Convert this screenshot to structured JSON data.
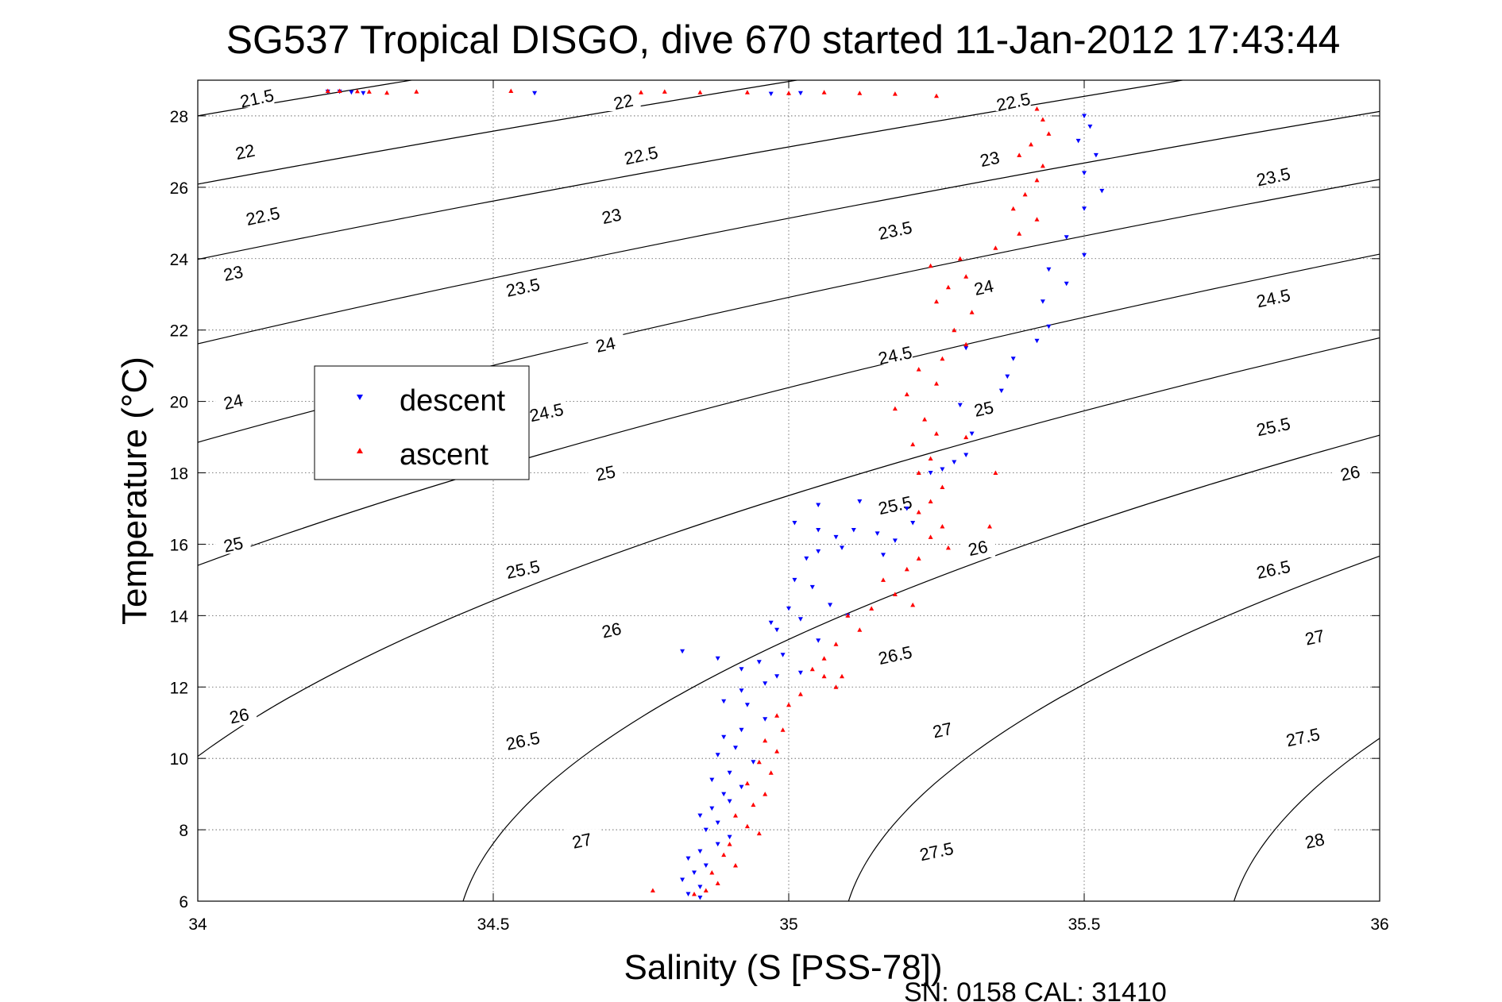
{
  "chart_data": {
    "type": "scatter",
    "title": "SG537 Tropical DISGO, dive 670 started 11-Jan-2012 17:43:44",
    "xlabel": "Salinity (S [PSS-78])",
    "ylabel": "Temperature (°C)",
    "footer": "SN: 0158  CAL: 31410",
    "xlim": [
      34,
      36
    ],
    "ylim": [
      6,
      29
    ],
    "xticks": [
      34,
      34.5,
      35,
      35.5,
      36
    ],
    "xtick_labels": [
      "34",
      "34.5",
      "35",
      "35.5",
      "36"
    ],
    "yticks": [
      6,
      8,
      10,
      12,
      14,
      16,
      18,
      20,
      22,
      24,
      26,
      28
    ],
    "ytick_labels": [
      "6",
      "8",
      "10",
      "12",
      "14",
      "16",
      "18",
      "20",
      "22",
      "24",
      "26",
      "28"
    ],
    "grid": true,
    "legend_position": "left-middle",
    "legend": [
      {
        "label": "descent",
        "color": "#0000ff",
        "marker": "triangle-down"
      },
      {
        "label": "ascent",
        "color": "#ff0000",
        "marker": "triangle-up"
      }
    ],
    "isopycnals": {
      "levels": [
        21.5,
        22,
        22.5,
        23,
        23.5,
        24,
        24.5,
        25,
        25.5,
        26,
        26.5,
        27,
        27.5,
        28
      ],
      "level_labels": [
        "21.5",
        "22",
        "22.5",
        "23",
        "23.5",
        "24",
        "24.5",
        "25",
        "25.5",
        "26",
        "26.5",
        "27",
        "27.5",
        "28"
      ],
      "line_color": "#000000",
      "label_positions": [
        {
          "level": 21.5,
          "label": "21.5",
          "x": 34.1,
          "y": 28.5
        },
        {
          "level": 22,
          "label": "22",
          "x": 34.08,
          "y": 27.0
        },
        {
          "level": 22,
          "label": "22",
          "x": 34.72,
          "y": 28.4
        },
        {
          "level": 22.5,
          "label": "22.5",
          "x": 34.11,
          "y": 25.2
        },
        {
          "level": 22.5,
          "label": "22.5",
          "x": 34.75,
          "y": 26.9
        },
        {
          "level": 22.5,
          "label": "22.5",
          "x": 35.38,
          "y": 28.4
        },
        {
          "level": 23,
          "label": "23",
          "x": 34.06,
          "y": 23.6
        },
        {
          "level": 23,
          "label": "23",
          "x": 34.7,
          "y": 25.2
        },
        {
          "level": 23,
          "label": "23",
          "x": 35.34,
          "y": 26.8
        },
        {
          "level": 23.5,
          "label": "23.5",
          "x": 34.55,
          "y": 23.2
        },
        {
          "level": 23.5,
          "label": "23.5",
          "x": 35.18,
          "y": 24.8
        },
        {
          "level": 23.5,
          "label": "23.5",
          "x": 35.82,
          "y": 26.3
        },
        {
          "level": 24,
          "label": "24",
          "x": 34.06,
          "y": 20.0
        },
        {
          "level": 24,
          "label": "24",
          "x": 34.69,
          "y": 21.6
        },
        {
          "level": 24,
          "label": "24",
          "x": 35.33,
          "y": 23.2
        },
        {
          "level": 24.5,
          "label": "24.5",
          "x": 34.59,
          "y": 19.7
        },
        {
          "level": 24.5,
          "label": "24.5",
          "x": 35.18,
          "y": 21.3
        },
        {
          "level": 24.5,
          "label": "24.5",
          "x": 35.82,
          "y": 22.9
        },
        {
          "level": 25,
          "label": "25",
          "x": 34.06,
          "y": 16.0
        },
        {
          "level": 25,
          "label": "25",
          "x": 34.69,
          "y": 18.0
        },
        {
          "level": 25,
          "label": "25",
          "x": 35.33,
          "y": 19.8
        },
        {
          "level": 25.5,
          "label": "25.5",
          "x": 34.55,
          "y": 15.3
        },
        {
          "level": 25.5,
          "label": "25.5",
          "x": 35.18,
          "y": 17.1
        },
        {
          "level": 25.5,
          "label": "25.5",
          "x": 35.82,
          "y": 19.3
        },
        {
          "level": 26,
          "label": "26",
          "x": 34.07,
          "y": 11.2
        },
        {
          "level": 26,
          "label": "26",
          "x": 34.7,
          "y": 13.6
        },
        {
          "level": 26,
          "label": "26",
          "x": 35.32,
          "y": 15.9
        },
        {
          "level": 26,
          "label": "26",
          "x": 35.95,
          "y": 18.0
        },
        {
          "level": 26.5,
          "label": "26.5",
          "x": 34.55,
          "y": 10.5
        },
        {
          "level": 26.5,
          "label": "26.5",
          "x": 35.18,
          "y": 12.9
        },
        {
          "level": 26.5,
          "label": "26.5",
          "x": 35.82,
          "y": 15.3
        },
        {
          "level": 27,
          "label": "27",
          "x": 34.65,
          "y": 7.7
        },
        {
          "level": 27,
          "label": "27",
          "x": 35.26,
          "y": 10.8
        },
        {
          "level": 27,
          "label": "27",
          "x": 35.89,
          "y": 13.4
        },
        {
          "level": 27.5,
          "label": "27.5",
          "x": 35.25,
          "y": 7.4
        },
        {
          "level": 27.5,
          "label": "27.5",
          "x": 35.87,
          "y": 10.6
        },
        {
          "level": 28,
          "label": "28",
          "x": 35.89,
          "y": 7.7
        }
      ]
    },
    "series": [
      {
        "name": "descent",
        "color": "#0000ff",
        "marker": "triangle-down",
        "points": [
          [
            34.22,
            28.68
          ],
          [
            34.24,
            28.68
          ],
          [
            34.26,
            28.66
          ],
          [
            34.28,
            28.64
          ],
          [
            34.57,
            28.64
          ],
          [
            34.97,
            28.62
          ],
          [
            35.02,
            28.64
          ],
          [
            35.5,
            28.0
          ],
          [
            35.51,
            27.7
          ],
          [
            35.49,
            27.3
          ],
          [
            35.52,
            26.9
          ],
          [
            35.5,
            26.4
          ],
          [
            35.53,
            25.9
          ],
          [
            35.5,
            25.4
          ],
          [
            35.47,
            24.6
          ],
          [
            35.5,
            24.1
          ],
          [
            35.44,
            23.7
          ],
          [
            35.47,
            23.3
          ],
          [
            35.43,
            22.8
          ],
          [
            35.44,
            22.1
          ],
          [
            35.42,
            21.7
          ],
          [
            35.38,
            21.2
          ],
          [
            35.37,
            20.7
          ],
          [
            35.36,
            20.3
          ],
          [
            35.3,
            21.5
          ],
          [
            35.29,
            19.9
          ],
          [
            35.31,
            19.1
          ],
          [
            35.3,
            18.5
          ],
          [
            35.28,
            18.3
          ],
          [
            35.26,
            18.1
          ],
          [
            35.24,
            18.0
          ],
          [
            35.12,
            17.2
          ],
          [
            35.2,
            17.0
          ],
          [
            35.05,
            17.1
          ],
          [
            35.01,
            16.6
          ],
          [
            35.05,
            16.4
          ],
          [
            35.08,
            16.2
          ],
          [
            35.11,
            16.4
          ],
          [
            35.15,
            16.3
          ],
          [
            35.18,
            16.1
          ],
          [
            35.21,
            16.6
          ],
          [
            35.16,
            15.7
          ],
          [
            35.09,
            15.9
          ],
          [
            35.05,
            15.8
          ],
          [
            35.03,
            15.6
          ],
          [
            35.04,
            14.8
          ],
          [
            35.0,
            14.2
          ],
          [
            35.07,
            14.3
          ],
          [
            35.1,
            14.0
          ],
          [
            35.02,
            13.9
          ],
          [
            34.98,
            13.6
          ],
          [
            35.05,
            13.3
          ],
          [
            34.99,
            12.9
          ],
          [
            34.95,
            12.7
          ],
          [
            34.92,
            12.5
          ],
          [
            34.98,
            12.3
          ],
          [
            35.02,
            12.4
          ],
          [
            34.96,
            12.1
          ],
          [
            34.92,
            11.9
          ],
          [
            34.89,
            11.6
          ],
          [
            34.93,
            11.5
          ],
          [
            34.96,
            11.1
          ],
          [
            34.92,
            10.8
          ],
          [
            34.89,
            10.6
          ],
          [
            34.91,
            10.3
          ],
          [
            34.88,
            10.1
          ],
          [
            34.94,
            9.9
          ],
          [
            34.9,
            9.6
          ],
          [
            34.87,
            9.4
          ],
          [
            34.92,
            9.2
          ],
          [
            34.89,
            9.0
          ],
          [
            34.9,
            8.8
          ],
          [
            34.87,
            8.6
          ],
          [
            34.85,
            8.4
          ],
          [
            34.88,
            8.2
          ],
          [
            34.86,
            8.0
          ],
          [
            34.9,
            7.8
          ],
          [
            34.88,
            7.6
          ],
          [
            34.85,
            7.4
          ],
          [
            34.83,
            7.2
          ],
          [
            34.86,
            7.0
          ],
          [
            34.84,
            6.8
          ],
          [
            34.82,
            6.6
          ],
          [
            34.85,
            6.4
          ],
          [
            34.83,
            6.2
          ],
          [
            34.85,
            6.1
          ],
          [
            34.82,
            13.0
          ],
          [
            34.88,
            12.8
          ],
          [
            35.01,
            15.0
          ],
          [
            34.97,
            13.8
          ]
        ]
      },
      {
        "name": "ascent",
        "color": "#ff0000",
        "marker": "triangle-up",
        "points": [
          [
            34.22,
            28.7
          ],
          [
            34.24,
            28.7
          ],
          [
            34.27,
            28.69
          ],
          [
            34.29,
            28.68
          ],
          [
            34.32,
            28.65
          ],
          [
            34.37,
            28.68
          ],
          [
            34.53,
            28.7
          ],
          [
            34.75,
            28.66
          ],
          [
            34.79,
            28.68
          ],
          [
            34.85,
            28.66
          ],
          [
            34.93,
            28.66
          ],
          [
            35.0,
            28.64
          ],
          [
            35.06,
            28.66
          ],
          [
            35.12,
            28.64
          ],
          [
            35.18,
            28.62
          ],
          [
            35.25,
            28.56
          ],
          [
            35.42,
            28.2
          ],
          [
            35.43,
            27.9
          ],
          [
            35.44,
            27.5
          ],
          [
            35.41,
            27.2
          ],
          [
            35.39,
            26.9
          ],
          [
            35.43,
            26.6
          ],
          [
            35.42,
            26.2
          ],
          [
            35.4,
            25.8
          ],
          [
            35.38,
            25.4
          ],
          [
            35.42,
            25.1
          ],
          [
            35.39,
            24.7
          ],
          [
            35.35,
            24.3
          ],
          [
            35.29,
            24.0
          ],
          [
            35.24,
            23.8
          ],
          [
            35.3,
            23.5
          ],
          [
            35.27,
            23.2
          ],
          [
            35.25,
            22.8
          ],
          [
            35.31,
            22.5
          ],
          [
            35.28,
            22.0
          ],
          [
            35.3,
            21.6
          ],
          [
            35.26,
            21.2
          ],
          [
            35.22,
            20.9
          ],
          [
            35.25,
            20.5
          ],
          [
            35.2,
            20.2
          ],
          [
            35.18,
            19.8
          ],
          [
            35.23,
            19.5
          ],
          [
            35.25,
            19.1
          ],
          [
            35.21,
            18.8
          ],
          [
            35.24,
            18.4
          ],
          [
            35.22,
            18.0
          ],
          [
            35.26,
            17.6
          ],
          [
            35.24,
            17.2
          ],
          [
            35.22,
            16.9
          ],
          [
            35.26,
            16.5
          ],
          [
            35.24,
            16.2
          ],
          [
            35.27,
            15.9
          ],
          [
            35.22,
            15.6
          ],
          [
            35.2,
            15.3
          ],
          [
            35.16,
            15.0
          ],
          [
            35.18,
            14.6
          ],
          [
            35.14,
            14.2
          ],
          [
            35.1,
            14.0
          ],
          [
            35.12,
            13.6
          ],
          [
            35.08,
            13.2
          ],
          [
            35.06,
            12.8
          ],
          [
            35.04,
            12.5
          ],
          [
            35.06,
            12.3
          ],
          [
            35.08,
            12.0
          ],
          [
            35.02,
            11.8
          ],
          [
            35.0,
            11.5
          ],
          [
            34.98,
            11.2
          ],
          [
            34.99,
            10.8
          ],
          [
            34.96,
            10.5
          ],
          [
            34.98,
            10.2
          ],
          [
            34.95,
            9.9
          ],
          [
            34.97,
            9.6
          ],
          [
            34.93,
            9.3
          ],
          [
            34.96,
            9.0
          ],
          [
            34.94,
            8.7
          ],
          [
            34.91,
            8.4
          ],
          [
            34.93,
            8.1
          ],
          [
            34.95,
            7.9
          ],
          [
            34.9,
            7.6
          ],
          [
            34.89,
            7.3
          ],
          [
            34.91,
            7.0
          ],
          [
            34.87,
            6.8
          ],
          [
            34.88,
            6.5
          ],
          [
            34.86,
            6.3
          ],
          [
            34.84,
            6.2
          ],
          [
            34.77,
            6.3
          ],
          [
            35.34,
            16.5
          ],
          [
            35.21,
            14.3
          ],
          [
            35.09,
            12.3
          ],
          [
            35.3,
            19.0
          ],
          [
            35.35,
            18.0
          ]
        ]
      }
    ]
  }
}
